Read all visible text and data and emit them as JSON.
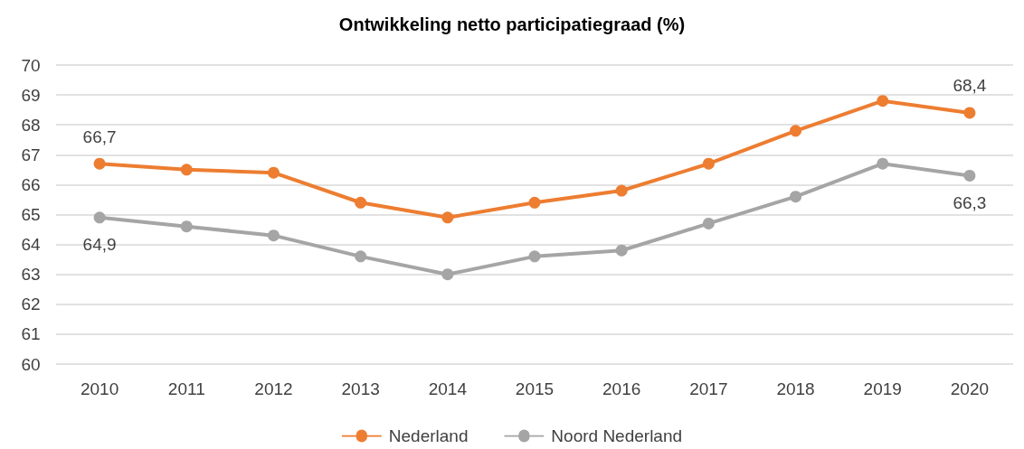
{
  "chart_data": {
    "type": "line",
    "title": "Ontwikkeling netto participatiegraad (%)",
    "categories": [
      "2010",
      "2011",
      "2012",
      "2013",
      "2014",
      "2015",
      "2016",
      "2017",
      "2018",
      "2019",
      "2020"
    ],
    "series": [
      {
        "name": "Nederland",
        "color": "#ed7d31",
        "values": [
          66.7,
          66.5,
          66.4,
          65.4,
          64.9,
          65.4,
          65.8,
          66.7,
          67.8,
          68.8,
          68.4
        ],
        "value_labels": [
          "66,7",
          null,
          null,
          null,
          null,
          null,
          null,
          null,
          null,
          null,
          "68,4"
        ]
      },
      {
        "name": "Noord Nederland",
        "color": "#a5a5a5",
        "values": [
          64.9,
          64.6,
          64.3,
          63.6,
          63.0,
          63.6,
          63.8,
          64.7,
          65.6,
          66.7,
          66.3
        ],
        "value_labels": [
          "64,9",
          null,
          null,
          null,
          null,
          null,
          null,
          null,
          null,
          null,
          "66,3"
        ]
      }
    ],
    "ylim": [
      60,
      70
    ],
    "yticks": [
      60,
      61,
      62,
      63,
      64,
      65,
      66,
      67,
      68,
      69,
      70
    ],
    "grid": "y",
    "legend": "bottom",
    "marker": "circle",
    "line_style": "solid"
  }
}
